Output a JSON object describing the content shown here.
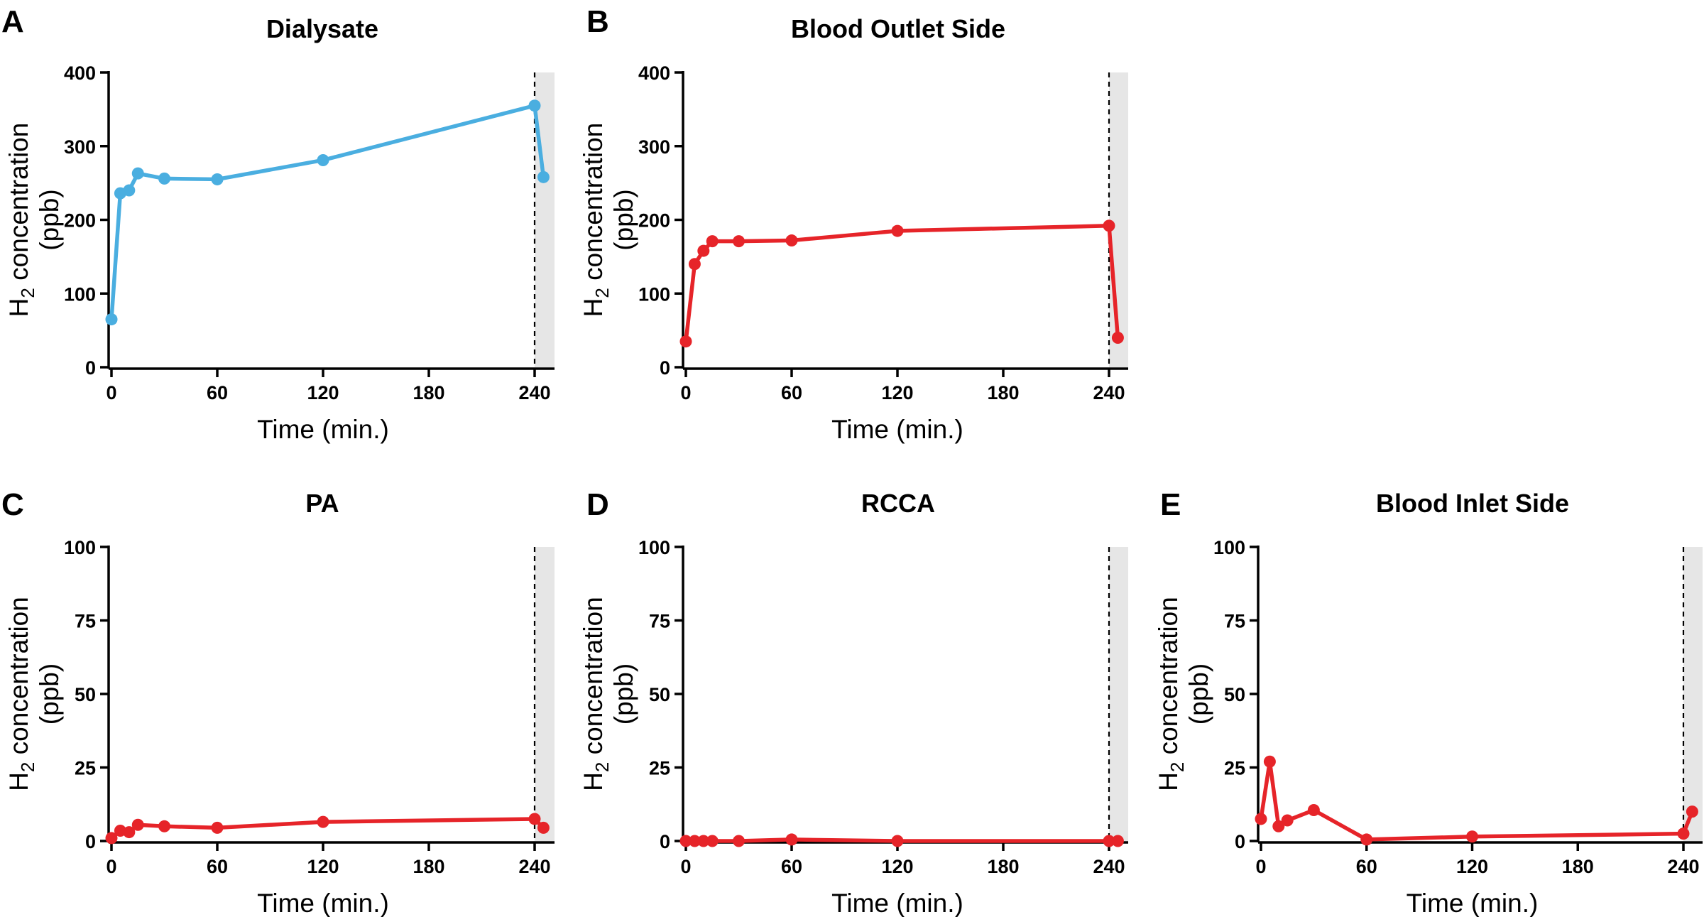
{
  "figure": {
    "xlabel": "Time (min.)",
    "ylabel_main": "H",
    "ylabel_sub": "2",
    "ylabel_rest": " concentration",
    "ylabel_unit": "(ppb)"
  },
  "colors": {
    "dialysate": "#4aaee0",
    "blood": "#e62429",
    "shade": "#e6e6e6"
  },
  "chart_data": [
    {
      "panel": "A",
      "title": "Dialysate",
      "type": "line",
      "xlim": [
        0,
        250
      ],
      "ylim": [
        0,
        400
      ],
      "xticks": [
        0,
        60,
        120,
        180,
        240
      ],
      "yticks": [
        0,
        100,
        200,
        300,
        400
      ],
      "xlabel": "Time (min.)",
      "ylabel": "H2 concentration (ppb)",
      "marker_line_x": 240,
      "shaded_from_x": 240,
      "color_key": "dialysate",
      "series": [
        {
          "name": "Dialysate",
          "x": [
            0,
            5,
            10,
            15,
            30,
            60,
            120,
            240,
            245
          ],
          "y": [
            65,
            236,
            240,
            263,
            256,
            255,
            281,
            355,
            258
          ]
        }
      ]
    },
    {
      "panel": "B",
      "title": "Blood Outlet Side",
      "type": "line",
      "xlim": [
        0,
        250
      ],
      "ylim": [
        0,
        400
      ],
      "xticks": [
        0,
        60,
        120,
        180,
        240
      ],
      "yticks": [
        0,
        100,
        200,
        300,
        400
      ],
      "xlabel": "Time (min.)",
      "ylabel": "H2 concentration (ppb)",
      "marker_line_x": 240,
      "shaded_from_x": 240,
      "color_key": "blood",
      "series": [
        {
          "name": "Blood Outlet Side",
          "x": [
            0,
            5,
            10,
            15,
            30,
            60,
            120,
            240,
            245
          ],
          "y": [
            35,
            140,
            158,
            171,
            171,
            172,
            185,
            192,
            40
          ]
        }
      ]
    },
    {
      "panel": "C",
      "title": "PA",
      "type": "line",
      "xlim": [
        0,
        250
      ],
      "ylim": [
        0,
        100
      ],
      "xticks": [
        0,
        60,
        120,
        180,
        240
      ],
      "yticks": [
        0,
        25,
        50,
        75,
        100
      ],
      "xlabel": "Time (min.)",
      "ylabel": "H2 concentration (ppb)",
      "marker_line_x": 240,
      "shaded_from_x": 240,
      "color_key": "blood",
      "series": [
        {
          "name": "PA",
          "x": [
            0,
            5,
            10,
            15,
            30,
            60,
            120,
            240,
            245
          ],
          "y": [
            1,
            3.5,
            3,
            5.5,
            5,
            4.5,
            6.5,
            7.5,
            4.5
          ]
        }
      ]
    },
    {
      "panel": "D",
      "title": "RCCA",
      "type": "line",
      "xlim": [
        0,
        250
      ],
      "ylim": [
        0,
        100
      ],
      "xticks": [
        0,
        60,
        120,
        180,
        240
      ],
      "yticks": [
        0,
        25,
        50,
        75,
        100
      ],
      "xlabel": "Time (min.)",
      "ylabel": "H2 concentration (ppb)",
      "marker_line_x": 240,
      "shaded_from_x": 240,
      "color_key": "blood",
      "series": [
        {
          "name": "RCCA",
          "x": [
            0,
            5,
            10,
            15,
            30,
            60,
            120,
            240,
            245
          ],
          "y": [
            0,
            0,
            0,
            0,
            0,
            0.5,
            0,
            0,
            0
          ]
        }
      ]
    },
    {
      "panel": "E",
      "title": "Blood Inlet Side",
      "type": "line",
      "xlim": [
        0,
        250
      ],
      "ylim": [
        0,
        100
      ],
      "xticks": [
        0,
        60,
        120,
        180,
        240
      ],
      "yticks": [
        0,
        25,
        50,
        75,
        100
      ],
      "xlabel": "Time (min.)",
      "ylabel": "H2 concentration (ppb)",
      "marker_line_x": 240,
      "shaded_from_x": 240,
      "color_key": "blood",
      "series": [
        {
          "name": "Blood Inlet Side",
          "x": [
            0,
            5,
            10,
            15,
            30,
            60,
            120,
            240,
            245
          ],
          "y": [
            7.5,
            27,
            5,
            7,
            10.5,
            0.5,
            1.5,
            2.5,
            10
          ]
        }
      ]
    }
  ]
}
